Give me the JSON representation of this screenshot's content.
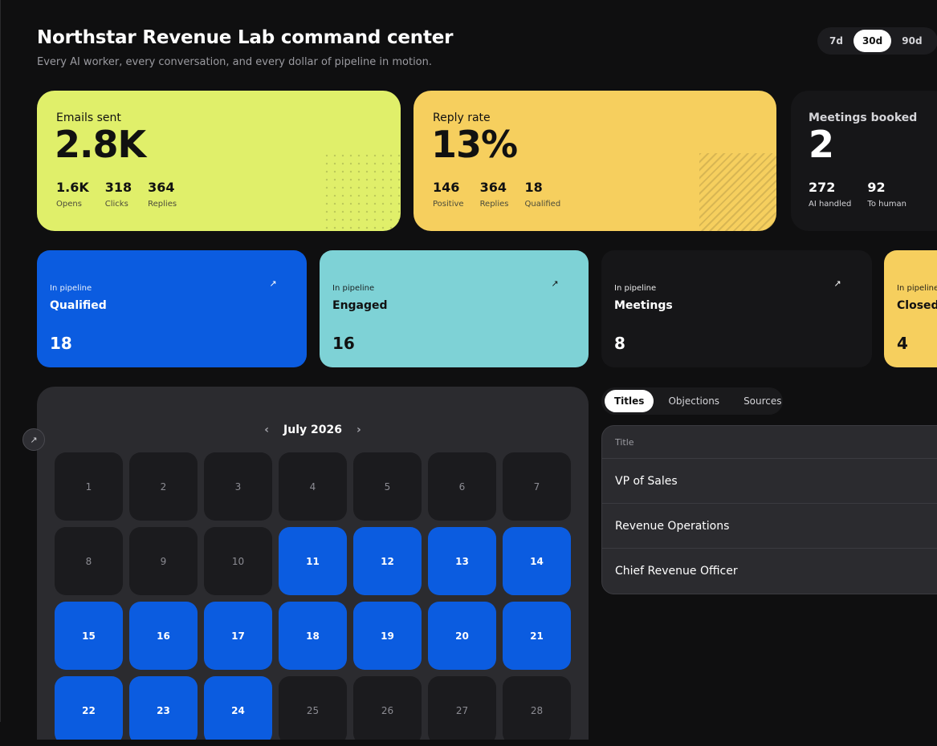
{
  "header": {
    "title": "Northstar Revenue Lab command center",
    "subtitle": "Every AI worker, every conversation, and every dollar of pipeline in motion."
  },
  "range": {
    "options": [
      "7d",
      "30d",
      "90d"
    ],
    "selected": "30d"
  },
  "kpis": {
    "emails": {
      "label": "Emails sent",
      "value": "2.8K",
      "stats": [
        {
          "value": "1.6K",
          "label": "Opens"
        },
        {
          "value": "318",
          "label": "Clicks"
        },
        {
          "value": "364",
          "label": "Replies"
        }
      ]
    },
    "reply": {
      "label": "Reply rate",
      "value": "13%",
      "stats": [
        {
          "value": "146",
          "label": "Positive"
        },
        {
          "value": "364",
          "label": "Replies"
        },
        {
          "value": "18",
          "label": "Qualified"
        }
      ]
    },
    "meetings": {
      "label": "Meetings booked",
      "value": "2",
      "stats": [
        {
          "value": "272",
          "label": "AI handled"
        },
        {
          "value": "92",
          "label": "To human"
        }
      ]
    }
  },
  "pipeline": [
    {
      "eyebrow": "In pipeline",
      "name": "Qualified",
      "count": "18",
      "arrow": "↗"
    },
    {
      "eyebrow": "In pipeline",
      "name": "Engaged",
      "count": "16",
      "arrow": "↗"
    },
    {
      "eyebrow": "In pipeline",
      "name": "Meetings",
      "count": "8",
      "arrow": "↗"
    },
    {
      "eyebrow": "In pipeline",
      "name": "Closed",
      "count": "4"
    }
  ],
  "calendar": {
    "month": "July 2026",
    "prev": "‹",
    "next": "›",
    "expand": "↗",
    "days": [
      {
        "d": "1",
        "active": false
      },
      {
        "d": "2",
        "active": false
      },
      {
        "d": "3",
        "active": false
      },
      {
        "d": "4",
        "active": false
      },
      {
        "d": "5",
        "active": false
      },
      {
        "d": "6",
        "active": false
      },
      {
        "d": "7",
        "active": false
      },
      {
        "d": "8",
        "active": false
      },
      {
        "d": "9",
        "active": false
      },
      {
        "d": "10",
        "active": false
      },
      {
        "d": "11",
        "active": true
      },
      {
        "d": "12",
        "active": true
      },
      {
        "d": "13",
        "active": true
      },
      {
        "d": "14",
        "active": true
      },
      {
        "d": "15",
        "active": true
      },
      {
        "d": "16",
        "active": true
      },
      {
        "d": "17",
        "active": true
      },
      {
        "d": "18",
        "active": true
      },
      {
        "d": "19",
        "active": true
      },
      {
        "d": "20",
        "active": true
      },
      {
        "d": "21",
        "active": true
      },
      {
        "d": "22",
        "active": true
      },
      {
        "d": "23",
        "active": true
      },
      {
        "d": "24",
        "active": true
      },
      {
        "d": "25",
        "active": false
      },
      {
        "d": "26",
        "active": false
      },
      {
        "d": "27",
        "active": false
      },
      {
        "d": "28",
        "active": false
      }
    ]
  },
  "breakdown": {
    "tabs": [
      "Titles",
      "Objections",
      "Sources"
    ],
    "selected_tab": "Titles",
    "column": "Title",
    "rows": [
      "VP of Sales",
      "Revenue Operations",
      "Chief Revenue Officer"
    ]
  },
  "colors": {
    "background": "#0f0f10",
    "lime": "#e0ef6a",
    "yellow": "#f6cf5e",
    "blue": "#0b5ce0",
    "teal": "#7ed2d6",
    "panel": "#2b2b2f"
  }
}
